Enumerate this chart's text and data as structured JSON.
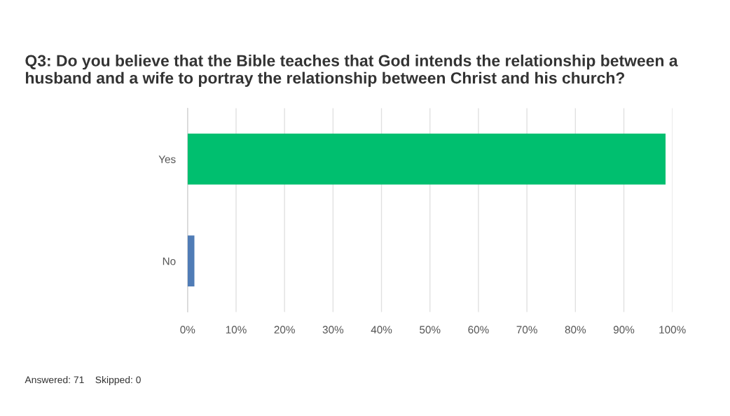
{
  "chart_data": {
    "type": "bar",
    "orientation": "horizontal",
    "title": "Q3: Do you believe that the Bible teaches that God intends the relationship between a husband and a wife to portray the relationship between Christ and his church?",
    "categories": [
      "Yes",
      "No"
    ],
    "values": [
      98.6,
      1.4
    ],
    "colors": [
      "#00bf6f",
      "#507cb6"
    ],
    "xlim": [
      0,
      100
    ],
    "xticks": [
      {
        "value": 0,
        "label": "0%"
      },
      {
        "value": 10,
        "label": "10%"
      },
      {
        "value": 20,
        "label": "20%"
      },
      {
        "value": 30,
        "label": "30%"
      },
      {
        "value": 40,
        "label": "40%"
      },
      {
        "value": 50,
        "label": "50%"
      },
      {
        "value": 60,
        "label": "60%"
      },
      {
        "value": 70,
        "label": "70%"
      },
      {
        "value": 80,
        "label": "80%"
      },
      {
        "value": 90,
        "label": "90%"
      },
      {
        "value": 100,
        "label": "100%"
      }
    ],
    "grid": "x",
    "annotations": [
      "Answered: 71    Skipped: 0"
    ]
  }
}
